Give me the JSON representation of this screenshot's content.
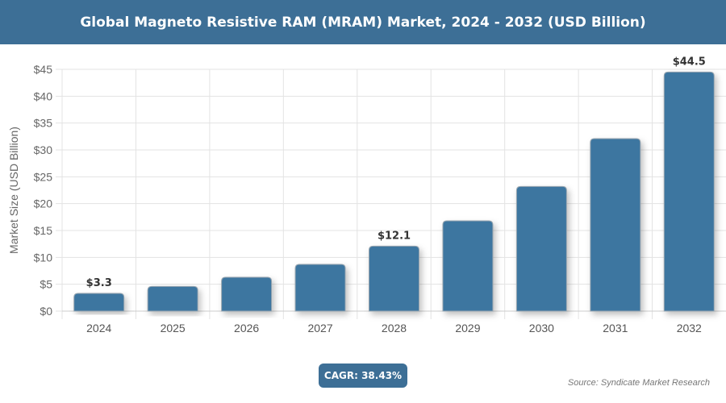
{
  "chart_data": {
    "type": "bar",
    "title": "Global Magneto Resistive RAM (MRAM) Market, 2024 - 2032 (USD Billion)",
    "ylabel": "Market Size (USD Billion)",
    "xlabel": "",
    "categories": [
      "2024",
      "2025",
      "2026",
      "2027",
      "2028",
      "2029",
      "2030",
      "2031",
      "2032"
    ],
    "values": [
      3.3,
      4.6,
      6.3,
      8.7,
      12.1,
      16.8,
      23.2,
      32.1,
      44.5
    ],
    "data_labels": {
      "2024": "$3.3",
      "2028": "$12.1",
      "2032": "$44.5"
    },
    "ylim": [
      0,
      45
    ],
    "yticks": [
      "$0",
      "$5",
      "$10",
      "$15",
      "$20",
      "$25",
      "$30",
      "$35",
      "$40",
      "$45"
    ],
    "grid": true,
    "bar_color": "#3d76a0"
  },
  "cagr": "CAGR: 38.43%",
  "source": "Source: Syndicate Market Research"
}
